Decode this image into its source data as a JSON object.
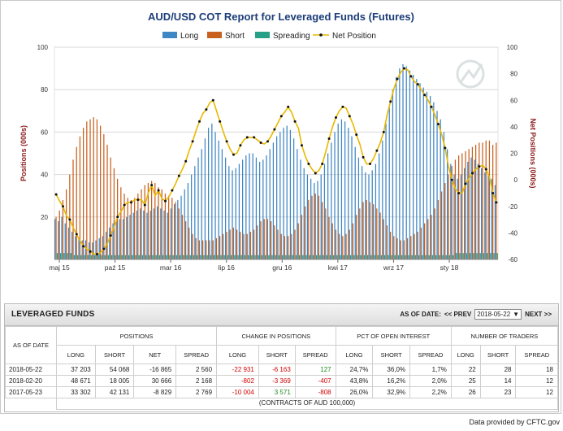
{
  "chart_data": {
    "type": "bar",
    "title": "AUD/USD COT Report for Leveraged Funds (Futures)",
    "ylabel_left": "Positions (000s)",
    "ylabel_right": "Net Positions (000s)",
    "ylim_left": [
      0,
      100
    ],
    "ylim_right": [
      -60,
      100
    ],
    "yticks_left": [
      "20",
      "40",
      "60",
      "80",
      "100"
    ],
    "yticks_right": [
      "-60",
      "-40",
      "-20",
      "0",
      "20",
      "40",
      "60",
      "80",
      "100"
    ],
    "x_tick_labels": [
      "maj 15",
      "paź 15",
      "mar 16",
      "lip 16",
      "gru 16",
      "kwi 17",
      "wrz 17",
      "sty 18"
    ],
    "grid": true,
    "legend_position": "top",
    "series": [
      {
        "name": "Long",
        "color": "#3f86c4",
        "values": [
          19,
          18,
          20,
          17,
          15,
          13,
          11,
          10,
          9,
          9,
          8,
          8,
          9,
          10,
          11,
          13,
          15,
          17,
          18,
          19,
          19,
          20,
          21,
          22,
          23,
          24,
          23,
          22,
          23,
          24,
          25,
          24,
          23,
          22,
          24,
          26,
          28,
          30,
          33,
          36,
          40,
          44,
          48,
          52,
          57,
          62,
          64,
          60,
          56,
          52,
          48,
          44,
          42,
          43,
          45,
          47,
          49,
          50,
          50,
          48,
          46,
          47,
          49,
          52,
          55,
          58,
          60,
          62,
          63,
          61,
          57,
          52,
          47,
          43,
          40,
          38,
          36,
          37,
          40,
          45,
          50,
          55,
          60,
          64,
          66,
          65,
          62,
          58,
          53,
          48,
          44,
          41,
          40,
          42,
          45,
          50,
          56,
          64,
          72,
          80,
          86,
          90,
          92,
          91,
          89,
          87,
          85,
          83,
          81,
          79,
          77,
          74,
          70,
          66,
          60,
          52,
          45,
          40,
          38,
          40,
          43,
          46,
          48,
          47,
          45,
          43,
          41,
          40,
          38,
          35
        ]
      },
      {
        "name": "Short",
        "color": "#c8611e",
        "values": [
          20,
          23,
          28,
          33,
          40,
          47,
          53,
          58,
          62,
          65,
          66,
          67,
          66,
          63,
          59,
          54,
          48,
          43,
          38,
          34,
          31,
          29,
          28,
          29,
          31,
          33,
          35,
          36,
          37,
          36,
          34,
          33,
          31,
          30,
          29,
          27,
          24,
          21,
          18,
          15,
          12,
          10,
          9,
          9,
          9,
          9,
          9,
          10,
          11,
          12,
          13,
          14,
          15,
          14,
          13,
          12,
          12,
          13,
          14,
          16,
          18,
          19,
          19,
          18,
          16,
          14,
          12,
          11,
          11,
          12,
          14,
          17,
          21,
          25,
          28,
          30,
          31,
          30,
          27,
          24,
          20,
          17,
          14,
          12,
          11,
          12,
          14,
          17,
          21,
          24,
          27,
          28,
          27,
          26,
          24,
          22,
          19,
          16,
          13,
          11,
          10,
          9,
          9,
          10,
          11,
          12,
          13,
          15,
          17,
          19,
          21,
          24,
          28,
          32,
          36,
          40,
          44,
          47,
          49,
          50,
          51,
          52,
          53,
          54,
          55,
          55,
          56,
          56,
          54,
          55
        ]
      },
      {
        "name": "Spreading",
        "color": "#26a187",
        "values": [
          3,
          3,
          3,
          3,
          3,
          2,
          2,
          2,
          2,
          2,
          2,
          2,
          2,
          2,
          2,
          2,
          2,
          2,
          2,
          2,
          2,
          2,
          2,
          2,
          2,
          2,
          2,
          2,
          2,
          2,
          2,
          2,
          2,
          2,
          2,
          2,
          2,
          2,
          2,
          2,
          2,
          2,
          2,
          2,
          2,
          2,
          2,
          2,
          2,
          2,
          2,
          2,
          2,
          2,
          2,
          2,
          2,
          2,
          2,
          2,
          2,
          2,
          2,
          2,
          2,
          2,
          2,
          2,
          2,
          2,
          2,
          2,
          2,
          2,
          2,
          2,
          2,
          2,
          2,
          2,
          2,
          2,
          2,
          2,
          2,
          2,
          2,
          2,
          2,
          2,
          2,
          2,
          2,
          2,
          2,
          2,
          2,
          2,
          2,
          2,
          2,
          2,
          2,
          2,
          2,
          2,
          2,
          2,
          2,
          2,
          2,
          2,
          2,
          2,
          2,
          2,
          2,
          3,
          3,
          3,
          3,
          3,
          3,
          3,
          3,
          3,
          3,
          3,
          3,
          3
        ]
      },
      {
        "name": "Net Position",
        "color": "#e8b800",
        "values": [
          -11,
          -16,
          -20,
          -27,
          -30,
          -36,
          -41,
          -46,
          -50,
          -52,
          -54,
          -56,
          -56,
          -55,
          -52,
          -48,
          -42,
          -35,
          -28,
          -24,
          -19,
          -17,
          -17,
          -15,
          -15,
          -15,
          -19,
          -10,
          -4,
          -12,
          -8,
          -14,
          -16,
          -13,
          -8,
          -3,
          3,
          8,
          14,
          22,
          29,
          37,
          44,
          50,
          53,
          58,
          60,
          52,
          44,
          36,
          29,
          23,
          19,
          20,
          26,
          30,
          32,
          32,
          32,
          30,
          28,
          27,
          29,
          33,
          38,
          43,
          48,
          51,
          55,
          51,
          44,
          39,
          26,
          18,
          12,
          8,
          5,
          7,
          12,
          21,
          31,
          40,
          47,
          52,
          55,
          54,
          48,
          42,
          34,
          27,
          17,
          12,
          12,
          16,
          22,
          28,
          36,
          49,
          59,
          69,
          76,
          81,
          84,
          83,
          78,
          74,
          72,
          68,
          64,
          60,
          55,
          49,
          42,
          34,
          24,
          10,
          0,
          -7,
          -10,
          -10,
          -3,
          1,
          5,
          8,
          10,
          11,
          8,
          2,
          -10,
          -17
        ]
      }
    ]
  },
  "legend": {
    "long": "Long",
    "short": "Short",
    "spreading": "Spreading",
    "net": "Net Position"
  },
  "table": {
    "title": "LEVERAGED FUNDS",
    "as_of_label": "AS OF DATE:",
    "prev_label": "<< PREV",
    "next_label": "NEXT >>",
    "selected_date": "2018-05-22",
    "header": {
      "as_of_date": "AS OF DATE",
      "positions": "POSITIONS",
      "change": "CHANGE IN POSITIONS",
      "pct": "PCT OF OPEN INTEREST",
      "traders": "NUMBER OF TRADERS",
      "long": "LONG",
      "short": "SHORT",
      "net": "NET",
      "spread": "SPREAD"
    },
    "rows": [
      {
        "date": "2018-05-22",
        "long": "37 203",
        "short": "54 068",
        "net": "-16 865",
        "spread": "2 560",
        "c_long": "-22 931",
        "c_short": "-6 163",
        "c_spread": "127",
        "p_long": "24,7%",
        "p_short": "36,0%",
        "p_spread": "1,7%",
        "t_long": "22",
        "t_short": "28",
        "t_spread": "18"
      },
      {
        "date": "2018-02-20",
        "long": "48 671",
        "short": "18 005",
        "net": "30 666",
        "spread": "2 168",
        "c_long": "-802",
        "c_short": "-3 369",
        "c_spread": "-407",
        "p_long": "43,8%",
        "p_short": "16,2%",
        "p_spread": "2,0%",
        "t_long": "25",
        "t_short": "14",
        "t_spread": "12"
      },
      {
        "date": "2017-05-23",
        "long": "33 302",
        "short": "42 131",
        "net": "-8 829",
        "spread": "2 769",
        "c_long": "-10 004",
        "c_short": "3 571",
        "c_spread": "-808",
        "p_long": "26,0%",
        "p_short": "32,9%",
        "p_spread": "2,2%",
        "t_long": "26",
        "t_short": "23",
        "t_spread": "12"
      }
    ],
    "footnote": "(CONTRACTS OF AUD 100,000)"
  },
  "credit": "Data provided by CFTC.gov",
  "colors": {
    "net_marker": "#111111",
    "grid": "#d8d8d8",
    "axis_label": "#8b1a1a"
  }
}
